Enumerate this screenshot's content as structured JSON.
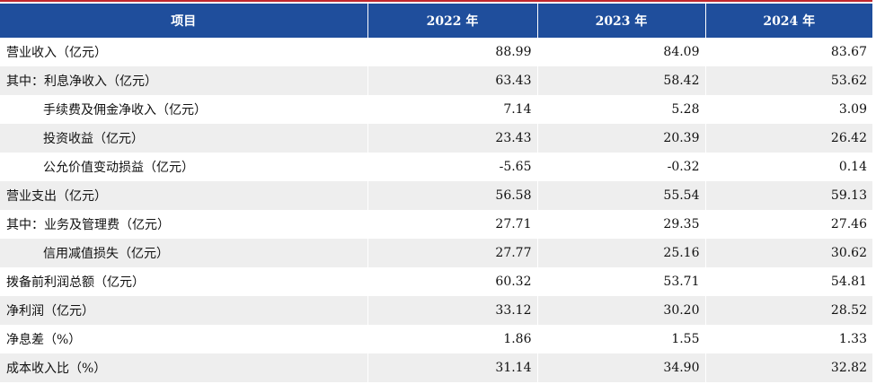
{
  "header": {
    "item": "项目",
    "years": [
      "2022 年",
      "2023 年",
      "2024 年"
    ]
  },
  "rows": [
    {
      "label": "营业收入（亿元）",
      "values": [
        "88.99",
        "84.09",
        "83.67"
      ]
    },
    {
      "label": "其中：利息净收入（亿元）",
      "values": [
        "63.43",
        "58.42",
        "53.62"
      ]
    },
    {
      "label": "手续费及佣金净收入（亿元）",
      "values": [
        "7.14",
        "5.28",
        "3.09"
      ]
    },
    {
      "label": "投资收益（亿元）",
      "values": [
        "23.43",
        "20.39",
        "26.42"
      ]
    },
    {
      "label": "公允价值变动损益（亿元）",
      "values": [
        "-5.65",
        "-0.32",
        "0.14"
      ]
    },
    {
      "label": "营业支出（亿元）",
      "values": [
        "56.58",
        "55.54",
        "59.13"
      ]
    },
    {
      "label": "其中：业务及管理费（亿元）",
      "values": [
        "27.71",
        "29.35",
        "27.46"
      ]
    },
    {
      "label": "信用减值损失（亿元）",
      "values": [
        "27.77",
        "25.16",
        "30.62"
      ]
    },
    {
      "label": "拨备前利润总额（亿元）",
      "values": [
        "60.32",
        "53.71",
        "54.81"
      ]
    },
    {
      "label": "净利润（亿元）",
      "values": [
        "33.12",
        "30.20",
        "28.52"
      ]
    },
    {
      "label": "净息差（%）",
      "values": [
        "1.86",
        "1.55",
        "1.33"
      ]
    },
    {
      "label": "成本收入比（%）",
      "values": [
        "31.14",
        "34.90",
        "32.82"
      ]
    }
  ]
}
